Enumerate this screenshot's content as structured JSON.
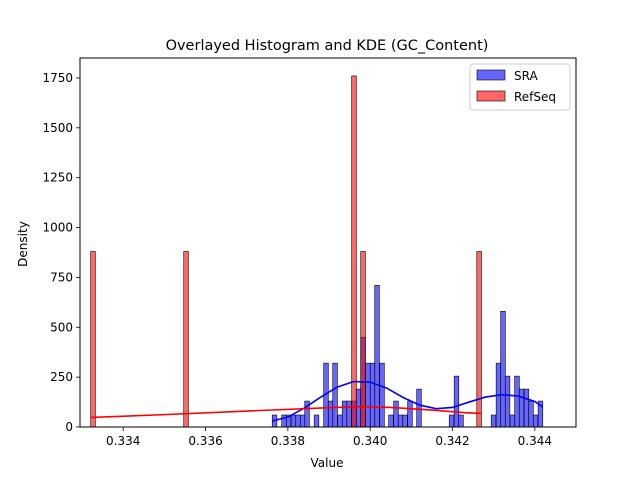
{
  "chart_data": {
    "type": "bar",
    "title": "Overlayed Histogram and KDE (GC_Content)",
    "xlabel": "Value",
    "ylabel": "Density",
    "xlim": [
      0.33295,
      0.345
    ],
    "ylim": [
      0,
      1850
    ],
    "xticks": [
      0.334,
      0.336,
      0.338,
      0.34,
      0.342,
      0.344
    ],
    "xtick_labels": [
      "0.334",
      "0.336",
      "0.338",
      "0.340",
      "0.342",
      "0.344"
    ],
    "yticks": [
      0,
      250,
      500,
      750,
      1000,
      1250,
      1500,
      1750
    ],
    "ytick_labels": [
      "0",
      "250",
      "500",
      "750",
      "1000",
      "1250",
      "1500",
      "1750"
    ],
    "legend_position": "top-right",
    "series": [
      {
        "name": "SRA",
        "color": "#0000ff",
        "bin_width": 0.000113,
        "bins": [
          [
            0.33762,
            60
          ],
          [
            0.33785,
            60
          ],
          [
            0.33796,
            60
          ],
          [
            0.33808,
            60
          ],
          [
            0.33819,
            60
          ],
          [
            0.3383,
            60
          ],
          [
            0.33841,
            130
          ],
          [
            0.33864,
            60
          ],
          [
            0.33887,
            320
          ],
          [
            0.33898,
            130
          ],
          [
            0.33909,
            320
          ],
          [
            0.33921,
            60
          ],
          [
            0.33932,
            130
          ],
          [
            0.33943,
            130
          ],
          [
            0.33955,
            130
          ],
          [
            0.33966,
            190
          ],
          [
            0.33977,
            450
          ],
          [
            0.33989,
            320
          ],
          [
            0.34,
            320
          ],
          [
            0.34011,
            710
          ],
          [
            0.34023,
            320
          ],
          [
            0.34045,
            60
          ],
          [
            0.34057,
            130
          ],
          [
            0.34068,
            60
          ],
          [
            0.34079,
            60
          ],
          [
            0.34091,
            130
          ],
          [
            0.34113,
            190
          ],
          [
            0.34192,
            60
          ],
          [
            0.34204,
            255
          ],
          [
            0.34215,
            60
          ],
          [
            0.34294,
            60
          ],
          [
            0.34306,
            320
          ],
          [
            0.34317,
            580
          ],
          [
            0.34328,
            255
          ],
          [
            0.3434,
            60
          ],
          [
            0.34351,
            255
          ],
          [
            0.34362,
            190
          ],
          [
            0.34374,
            190
          ],
          [
            0.34385,
            130
          ],
          [
            0.34396,
            60
          ],
          [
            0.34408,
            130
          ]
        ],
        "kde": [
          [
            0.33762,
            30
          ],
          [
            0.338,
            50
          ],
          [
            0.3384,
            95
          ],
          [
            0.3388,
            150
          ],
          [
            0.3392,
            200
          ],
          [
            0.3396,
            228
          ],
          [
            0.34,
            225
          ],
          [
            0.3404,
            195
          ],
          [
            0.3408,
            148
          ],
          [
            0.3412,
            110
          ],
          [
            0.3416,
            92
          ],
          [
            0.342,
            98
          ],
          [
            0.3424,
            125
          ],
          [
            0.3428,
            150
          ],
          [
            0.3432,
            162
          ],
          [
            0.3436,
            155
          ],
          [
            0.344,
            128
          ],
          [
            0.34419,
            100
          ]
        ]
      },
      {
        "name": "RefSeq",
        "color": "#ff0000",
        "bin_width": 0.000113,
        "bins": [
          [
            0.33321,
            880
          ],
          [
            0.33547,
            880
          ],
          [
            0.33955,
            1760
          ],
          [
            0.33977,
            880
          ],
          [
            0.34259,
            880
          ]
        ],
        "kde": [
          [
            0.33321,
            48
          ],
          [
            0.335,
            62
          ],
          [
            0.337,
            80
          ],
          [
            0.339,
            97
          ],
          [
            0.3397,
            102
          ],
          [
            0.3405,
            98
          ],
          [
            0.3415,
            85
          ],
          [
            0.3423,
            72
          ],
          [
            0.3427,
            68
          ]
        ]
      }
    ]
  }
}
